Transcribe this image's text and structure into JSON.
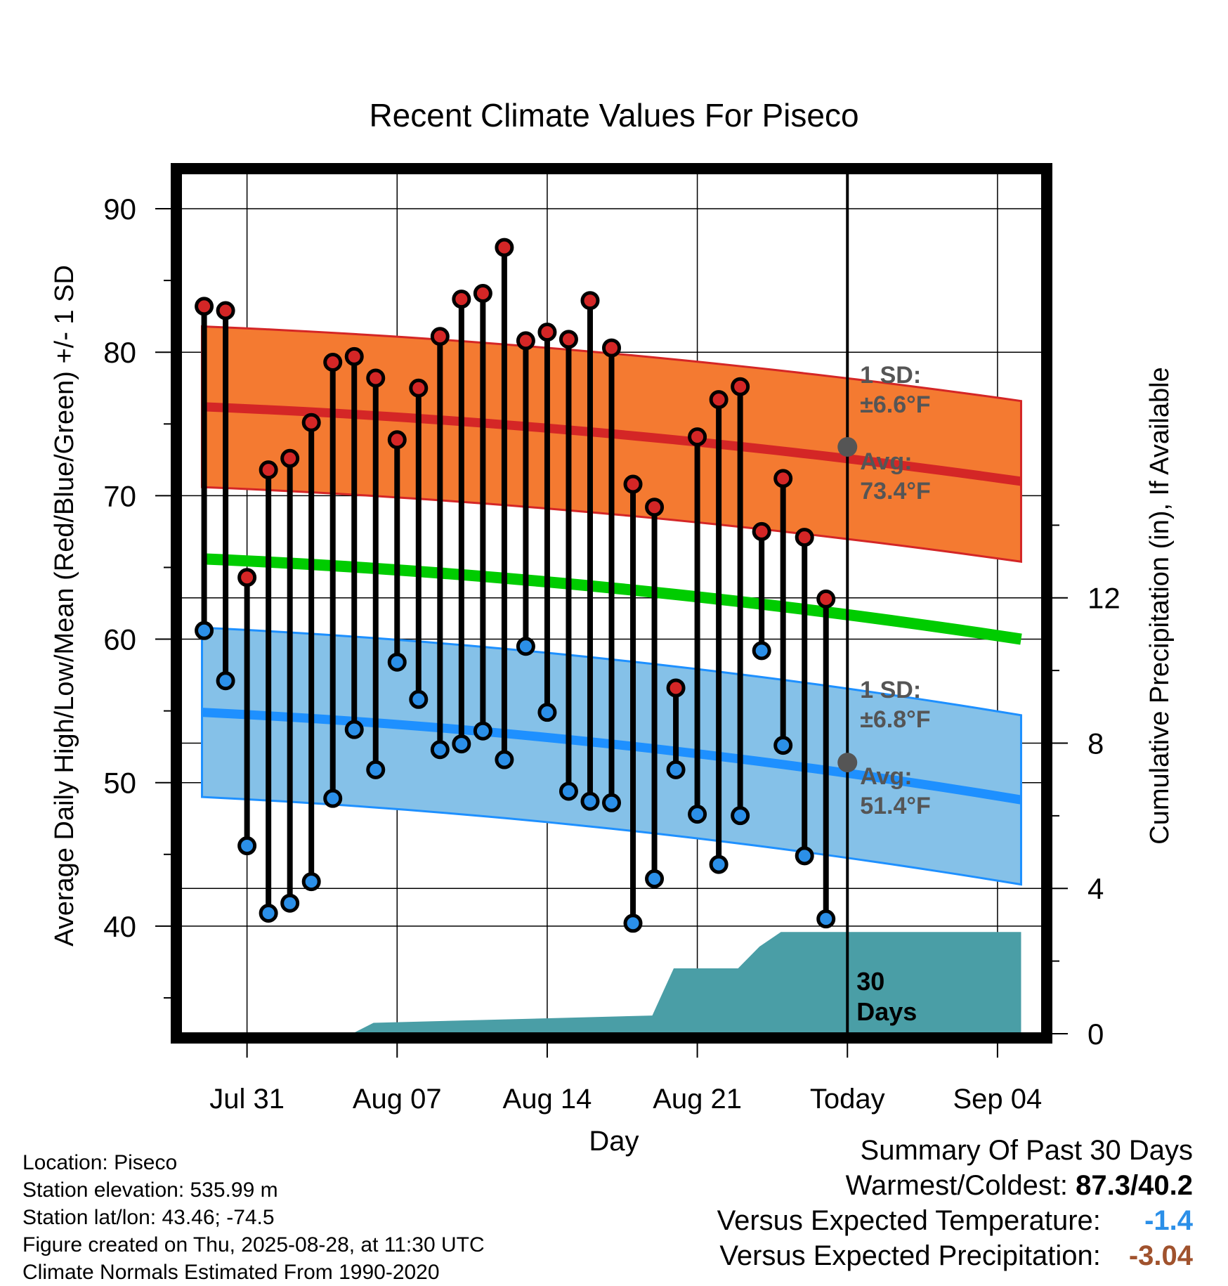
{
  "chart_data": {
    "type": "line",
    "title": "Recent Climate Values For Piseco",
    "xlabel": "Day",
    "ylabel": "Average Daily High/Low/Mean (Red/Blue/Green) +/- 1 SD",
    "ylabel_right": "Cumulative Precipitation (in), If Available",
    "x_ticks": [
      "Jul 31",
      "Aug 07",
      "Aug 14",
      "Aug 21",
      "Today",
      "Sep 04"
    ],
    "y_ticks": [
      40,
      50,
      60,
      70,
      80,
      90
    ],
    "y2_ticks": [
      0,
      4,
      8,
      12
    ],
    "ylim": [
      32.5,
      92.5
    ],
    "y2lim": [
      0,
      23.7
    ],
    "xlim": [
      -3.1,
      37.1
    ],
    "highs": [
      83.2,
      82.9,
      64.3,
      71.8,
      72.6,
      75.1,
      79.3,
      79.7,
      78.2,
      73.9,
      77.5,
      81.1,
      83.7,
      84.1,
      87.3,
      80.8,
      81.4,
      80.9,
      83.6,
      80.3,
      70.8,
      69.2,
      56.6,
      74.1,
      76.7,
      77.6,
      67.5,
      71.2,
      67.1,
      62.8
    ],
    "lows": [
      60.6,
      57.1,
      45.6,
      40.9,
      41.6,
      43.1,
      48.9,
      53.7,
      50.9,
      58.4,
      55.8,
      52.3,
      52.7,
      53.6,
      51.6,
      59.5,
      54.9,
      49.4,
      48.7,
      48.6,
      40.2,
      43.3,
      50.9,
      47.8,
      44.3,
      47.7,
      59.2,
      52.6,
      44.9,
      40.5
    ],
    "normal_high": {
      "x": [
        -2.1,
        36.1
      ],
      "avg": [
        76.2,
        71.0
      ],
      "sd": 5.6
    },
    "normal_low": {
      "x": [
        -2.1,
        36.1
      ],
      "avg": [
        54.9,
        48.8
      ],
      "sd": 5.9
    },
    "normal_mean": {
      "x": [
        -2.1,
        36.1
      ],
      "avg": [
        65.6,
        60.0
      ]
    },
    "precip": {
      "x": [
        -2.1,
        4.9,
        5.9,
        18.9,
        19.9,
        22.9,
        23.9,
        24.9,
        36.1
      ],
      "values": [
        0,
        0,
        0.3,
        0.5,
        1.8,
        1.8,
        2.4,
        2.8,
        2.8
      ]
    },
    "annotations": {
      "high_sd_label": "1 SD:",
      "high_sd_value": "±6.6°F",
      "high_avg_label": "Avg:",
      "high_avg_value": "73.4°F",
      "low_sd_label": "1 SD:",
      "low_sd_value": "±6.8°F",
      "low_avg_label": "Avg:",
      "low_avg_value": "51.4°F",
      "today_avg_high": 73.4,
      "today_avg_low": 51.4,
      "days_line1": "30",
      "days_line2": "Days"
    },
    "colors": {
      "high_band": "#f47a31",
      "high_line": "#d42626",
      "low_band": "#85c1e8",
      "low_line": "#1e90ff",
      "mean_line": "#00cc00",
      "precip": "#4a9ea6",
      "high_dot": "#d42626",
      "low_dot": "#2b8fe8",
      "annotation": "#555555"
    }
  },
  "footer": {
    "location": "Location: Piseco",
    "elevation": "Station elevation: 535.99 m",
    "latlon": "Station lat/lon: 43.46; -74.5",
    "created": "Figure created on Thu, 2025-08-28, at 11:30 UTC",
    "normals": "Climate Normals Estimated From 1990-2020"
  },
  "summary": {
    "title": "Summary Of Past 30 Days",
    "warmest_label": "Warmest/Coldest:",
    "warmest_value": "87.3/40.2",
    "temp_label": "Versus Expected Temperature:",
    "temp_value": "-1.4",
    "temp_color": "#2b8fe8",
    "precip_label": "Versus Expected Precipitation:",
    "precip_value": "-3.04",
    "precip_color": "#a0522d"
  }
}
